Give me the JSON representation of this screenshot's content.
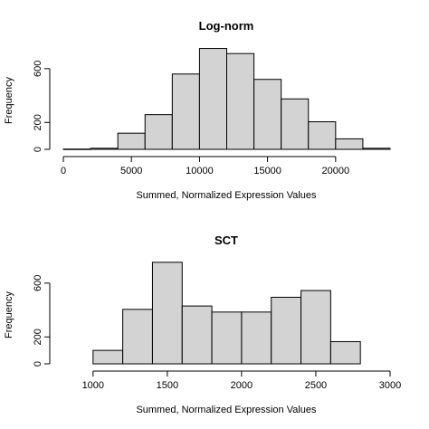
{
  "chart_data": [
    {
      "type": "bar",
      "title": "Log-norm",
      "xlabel": "Summed, Normalized Expression Values",
      "ylabel": "Frequency",
      "bin_edges": [
        0,
        2000,
        4000,
        6000,
        8000,
        10000,
        12000,
        14000,
        16000,
        18000,
        20000,
        22000,
        24000
      ],
      "values": [
        2,
        8,
        120,
        258,
        560,
        750,
        712,
        520,
        375,
        205,
        78,
        8
      ],
      "xlim": [
        0,
        24000
      ],
      "ylim": [
        0,
        720
      ],
      "xticks": [
        0,
        5000,
        10000,
        15000,
        20000
      ],
      "yticks": [
        0,
        200,
        600
      ],
      "grid": false
    },
    {
      "type": "bar",
      "title": "SCT",
      "xlabel": "Summed, Normalized Expression Values",
      "ylabel": "Frequency",
      "bin_edges": [
        1000,
        1200,
        1400,
        1600,
        1800,
        2000,
        2200,
        2400,
        2600,
        2800
      ],
      "values": [
        100,
        405,
        755,
        430,
        385,
        385,
        495,
        545,
        165
      ],
      "xlim": [
        800,
        3000
      ],
      "ylim": [
        0,
        720
      ],
      "xticks": [
        1000,
        1500,
        2000,
        2500,
        3000
      ],
      "yticks": [
        0,
        200,
        600
      ],
      "grid": false
    }
  ]
}
